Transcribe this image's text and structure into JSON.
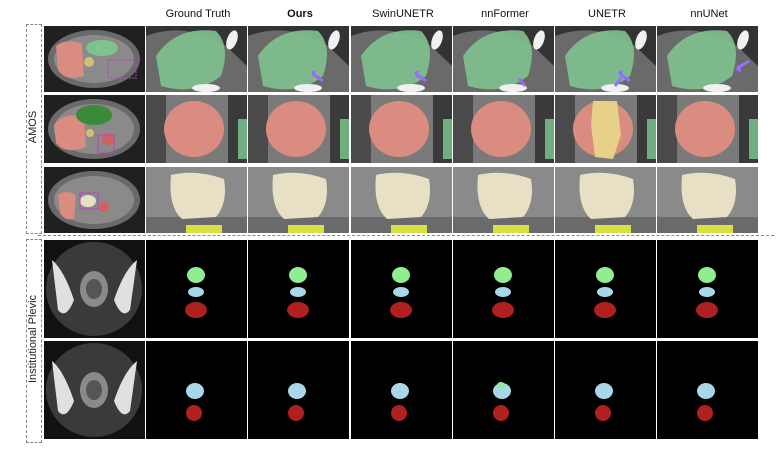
{
  "columns": [
    "",
    "Ground Truth",
    "Ours",
    "SwinUNETR",
    "nnFormer",
    "UNETR",
    "nnUNet"
  ],
  "bold_column": "Ours",
  "groups": [
    {
      "label": "AMOS",
      "rows": 3
    },
    {
      "label": "Institutional Plevic",
      "rows": 2
    }
  ],
  "colors": {
    "liver": "#d98c7f",
    "spleen": "#7fc28f",
    "pancreas": "#e8e0c4",
    "stomach": "#cfc178",
    "bladder": "#90ee90",
    "prostate": "#a8d8e8",
    "rectum": "#b02020",
    "arrow": "#9a6aff",
    "ct_bg": "#555555"
  }
}
